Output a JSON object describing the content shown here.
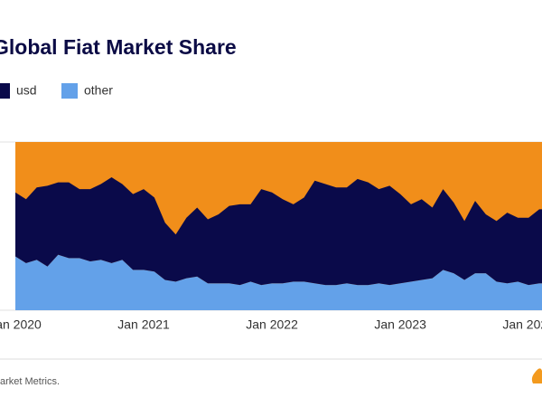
{
  "chart_data": {
    "type": "stacked_area",
    "title": "Global Fiat Market Share",
    "footer": "arket Metrics.",
    "x": [
      "2020-01",
      "2020-02",
      "2020-03",
      "2020-04",
      "2020-05",
      "2020-06",
      "2020-07",
      "2020-08",
      "2020-09",
      "2020-10",
      "2020-11",
      "2020-12",
      "2021-01",
      "2021-02",
      "2021-03",
      "2021-04",
      "2021-05",
      "2021-06",
      "2021-07",
      "2021-08",
      "2021-09",
      "2021-10",
      "2021-11",
      "2021-12",
      "2022-01",
      "2022-02",
      "2022-03",
      "2022-04",
      "2022-05",
      "2022-06",
      "2022-07",
      "2022-08",
      "2022-09",
      "2022-10",
      "2022-11",
      "2022-12",
      "2023-01",
      "2023-02",
      "2023-03",
      "2023-04",
      "2023-05",
      "2023-06",
      "2023-07",
      "2023-08",
      "2023-09",
      "2023-10",
      "2023-11",
      "2023-12",
      "2024-01",
      "2024-02"
    ],
    "series": [
      {
        "name": "usd",
        "color": "#0a0a4a",
        "values": [
          38,
          38,
          43,
          48,
          43,
          45,
          41,
          43,
          45,
          51,
          45,
          45,
          48,
          44,
          34,
          28,
          36,
          41,
          38,
          41,
          46,
          48,
          46,
          57,
          54,
          50,
          46,
          50,
          61,
          60,
          58,
          57,
          63,
          61,
          56,
          59,
          53,
          46,
          48,
          42,
          48,
          42,
          35,
          43,
          35,
          36,
          42,
          38,
          40,
          44
        ]
      },
      {
        "name": "other",
        "color": "#63a1e9",
        "values": [
          32,
          28,
          30,
          26,
          33,
          31,
          31,
          29,
          30,
          28,
          30,
          24,
          24,
          23,
          18,
          17,
          19,
          20,
          16,
          16,
          16,
          15,
          17,
          15,
          16,
          16,
          17,
          17,
          16,
          15,
          15,
          16,
          15,
          15,
          16,
          15,
          16,
          17,
          18,
          19,
          24,
          22,
          18,
          22,
          22,
          17,
          16,
          17,
          15,
          16
        ]
      }
    ],
    "xlim": [
      "2020-01",
      "2024-02"
    ],
    "xticks": [
      {
        "value": "2020-01",
        "label": "Jan 2020"
      },
      {
        "value": "2021-01",
        "label": "Jan 2021"
      },
      {
        "value": "2022-01",
        "label": "Jan 2022"
      },
      {
        "value": "2023-01",
        "label": "Jan 2023"
      },
      {
        "value": "2024-01",
        "label": "Jan 2024"
      }
    ],
    "ylim": [
      0,
      100
    ],
    "grid": true
  }
}
